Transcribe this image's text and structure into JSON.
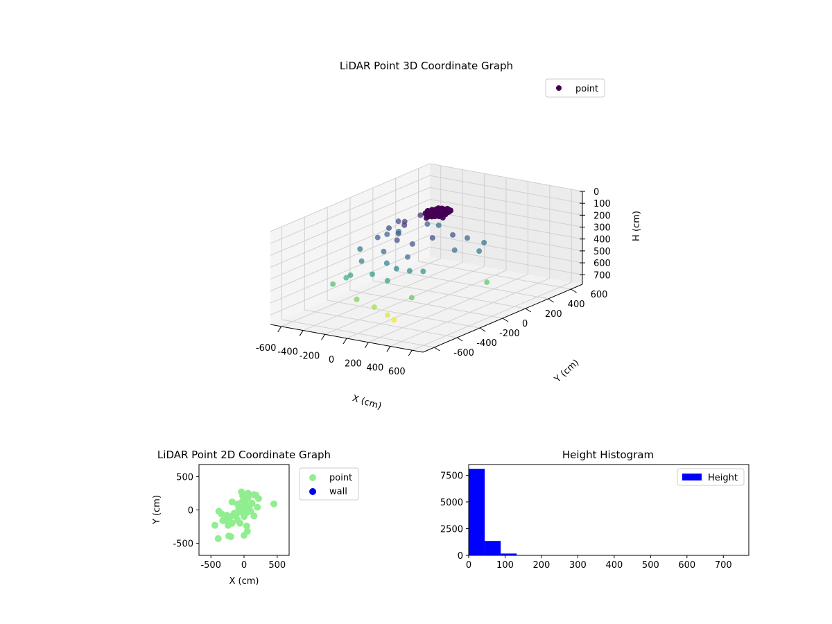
{
  "chart_data": [
    {
      "type": "scatter",
      "projection": "3d",
      "title": "LiDAR Point 3D Coordinate Graph",
      "xlabel": "X (cm)",
      "ylabel": "Y (cm)",
      "zlabel": "H (cm)",
      "xlim": [
        -700,
        700
      ],
      "ylim": [
        -700,
        700
      ],
      "zlim": [
        780,
        0
      ],
      "z_inverted": true,
      "xticks": [
        -600,
        -400,
        -200,
        0,
        200,
        400,
        600
      ],
      "yticks": [
        -600,
        -400,
        -200,
        0,
        200,
        400,
        600
      ],
      "zticks": [
        0,
        100,
        200,
        300,
        400,
        500,
        600,
        700
      ],
      "colormap": "viridis",
      "legend": [
        {
          "label": "point",
          "color": "#440154"
        }
      ],
      "legend_position": "top-right",
      "grid": true,
      "series": [
        {
          "name": "point",
          "points": [
            {
              "x": 40,
              "y": 60,
              "h": 20
            },
            {
              "x": 60,
              "y": 40,
              "h": 15
            },
            {
              "x": 20,
              "y": 80,
              "h": 25
            },
            {
              "x": 80,
              "y": 20,
              "h": 30
            },
            {
              "x": 0,
              "y": 50,
              "h": 10
            },
            {
              "x": 50,
              "y": 0,
              "h": 35
            },
            {
              "x": 100,
              "y": 60,
              "h": 20
            },
            {
              "x": 30,
              "y": 100,
              "h": 40
            },
            {
              "x": 70,
              "y": 90,
              "h": 25
            },
            {
              "x": -20,
              "y": 30,
              "h": 30
            },
            {
              "x": 120,
              "y": 30,
              "h": 45
            },
            {
              "x": 10,
              "y": -10,
              "h": 50
            },
            {
              "x": 90,
              "y": 120,
              "h": 30
            },
            {
              "x": -40,
              "y": 80,
              "h": 55
            },
            {
              "x": -150,
              "y": -50,
              "h": 120
            },
            {
              "x": -220,
              "y": 20,
              "h": 130
            },
            {
              "x": -260,
              "y": -80,
              "h": 150
            },
            {
              "x": -180,
              "y": 120,
              "h": 110
            },
            {
              "x": -100,
              "y": -150,
              "h": 140
            },
            {
              "x": -320,
              "y": 60,
              "h": 160
            },
            {
              "x": 150,
              "y": -90,
              "h": 160
            },
            {
              "x": 200,
              "y": 40,
              "h": 180
            },
            {
              "x": -60,
              "y": -200,
              "h": 170
            },
            {
              "x": -280,
              "y": -160,
              "h": 200
            },
            {
              "x": 60,
              "y": -180,
              "h": 190
            },
            {
              "x": 250,
              "y": 120,
              "h": 230
            },
            {
              "x": -200,
              "y": 200,
              "h": 220
            },
            {
              "x": -340,
              "y": -20,
              "h": 240
            },
            {
              "x": -120,
              "y": -260,
              "h": 250
            },
            {
              "x": 100,
              "y": -260,
              "h": 260
            },
            {
              "x": 280,
              "y": -20,
              "h": 270
            },
            {
              "x": -380,
              "y": 120,
              "h": 280
            },
            {
              "x": 320,
              "y": 200,
              "h": 290
            },
            {
              "x": -50,
              "y": -300,
              "h": 320
            },
            {
              "x": -260,
              "y": -320,
              "h": 330
            },
            {
              "x": 380,
              "y": 100,
              "h": 310
            },
            {
              "x": 60,
              "y": -320,
              "h": 340
            },
            {
              "x": 160,
              "y": -300,
              "h": 350
            },
            {
              "x": -400,
              "y": -200,
              "h": 300
            },
            {
              "x": -180,
              "y": 280,
              "h": 260
            },
            {
              "x": 200,
              "y": -220,
              "h": 380
            },
            {
              "x": -120,
              "y": -360,
              "h": 400
            },
            {
              "x": 40,
              "y": -380,
              "h": 420
            },
            {
              "x": -300,
              "y": -380,
              "h": 430
            },
            {
              "x": -440,
              "y": -400,
              "h": 520
            },
            {
              "x": 200,
              "y": -320,
              "h": 560
            },
            {
              "x": 450,
              "y": 100,
              "h": 560
            },
            {
              "x": -200,
              "y": -420,
              "h": 600
            },
            {
              "x": 20,
              "y": -360,
              "h": 720
            },
            {
              "x": 100,
              "y": -380,
              "h": 740
            },
            {
              "x": -60,
              "y": -400,
              "h": 650
            },
            {
              "x": -360,
              "y": -360,
              "h": 470
            }
          ]
        }
      ]
    },
    {
      "type": "scatter",
      "title": "LiDAR Point 2D Coordinate Graph",
      "xlabel": "X (cm)",
      "ylabel": "Y (cm)",
      "xlim": [
        -680,
        680
      ],
      "ylim": [
        -680,
        680
      ],
      "xticks": [
        -500,
        0,
        500
      ],
      "yticks": [
        -500,
        0,
        500
      ],
      "legend_position": "outside-right",
      "series": [
        {
          "name": "point",
          "color": "#90ee90",
          "points": [
            {
              "x": -20,
              "y": 50
            },
            {
              "x": 30,
              "y": 80
            },
            {
              "x": 60,
              "y": 20
            },
            {
              "x": 0,
              "y": 0
            },
            {
              "x": -50,
              "y": -30
            },
            {
              "x": 80,
              "y": 60
            },
            {
              "x": 40,
              "y": -40
            },
            {
              "x": -80,
              "y": 20
            },
            {
              "x": 120,
              "y": 100
            },
            {
              "x": 20,
              "y": 140
            },
            {
              "x": -30,
              "y": 120
            },
            {
              "x": 100,
              "y": -20
            },
            {
              "x": -120,
              "y": -80
            },
            {
              "x": -150,
              "y": -50
            },
            {
              "x": -220,
              "y": -120
            },
            {
              "x": -260,
              "y": -80
            },
            {
              "x": -180,
              "y": -200
            },
            {
              "x": -100,
              "y": -150
            },
            {
              "x": -60,
              "y": -200
            },
            {
              "x": 150,
              "y": -90
            },
            {
              "x": 200,
              "y": 40
            },
            {
              "x": -320,
              "y": -160
            },
            {
              "x": -280,
              "y": -160
            },
            {
              "x": -40,
              "y": 270
            },
            {
              "x": 60,
              "y": 250
            },
            {
              "x": 180,
              "y": 220
            },
            {
              "x": 220,
              "y": 170
            },
            {
              "x": 150,
              "y": 230
            },
            {
              "x": -20,
              "y": 210
            },
            {
              "x": 60,
              "y": 180
            },
            {
              "x": -180,
              "y": 120
            },
            {
              "x": -100,
              "y": 90
            },
            {
              "x": 0,
              "y": -100
            },
            {
              "x": -120,
              "y": -60
            },
            {
              "x": -200,
              "y": -100
            },
            {
              "x": -240,
              "y": -230
            },
            {
              "x": -380,
              "y": -20
            },
            {
              "x": -340,
              "y": -60
            },
            {
              "x": -440,
              "y": -230
            },
            {
              "x": -390,
              "y": -430
            },
            {
              "x": -200,
              "y": -400
            },
            {
              "x": -230,
              "y": -390
            },
            {
              "x": 0,
              "y": -380
            },
            {
              "x": 50,
              "y": -320
            },
            {
              "x": 40,
              "y": -240
            },
            {
              "x": 450,
              "y": 90
            }
          ]
        },
        {
          "name": "wall",
          "color": "#0000ee",
          "points": []
        }
      ]
    },
    {
      "type": "bar",
      "subtype": "histogram",
      "title": "Height Histogram",
      "xlim": [
        0,
        770
      ],
      "ylim": [
        0,
        8500
      ],
      "xticks": [
        0,
        100,
        200,
        300,
        400,
        500,
        600,
        700
      ],
      "yticks": [
        0,
        2500,
        5000,
        7500
      ],
      "legend_position": "top-right",
      "series": [
        {
          "name": "Height",
          "color": "#0000ff",
          "bins": [
            0,
            44,
            88,
            132,
            176,
            220,
            264,
            308,
            352,
            396,
            440,
            484,
            528,
            572,
            616,
            660,
            704,
            748
          ],
          "values": [
            8100,
            1350,
            170,
            25,
            15,
            10,
            8,
            6,
            4,
            3,
            3,
            2,
            2,
            2,
            1,
            1,
            1
          ]
        }
      ]
    }
  ]
}
